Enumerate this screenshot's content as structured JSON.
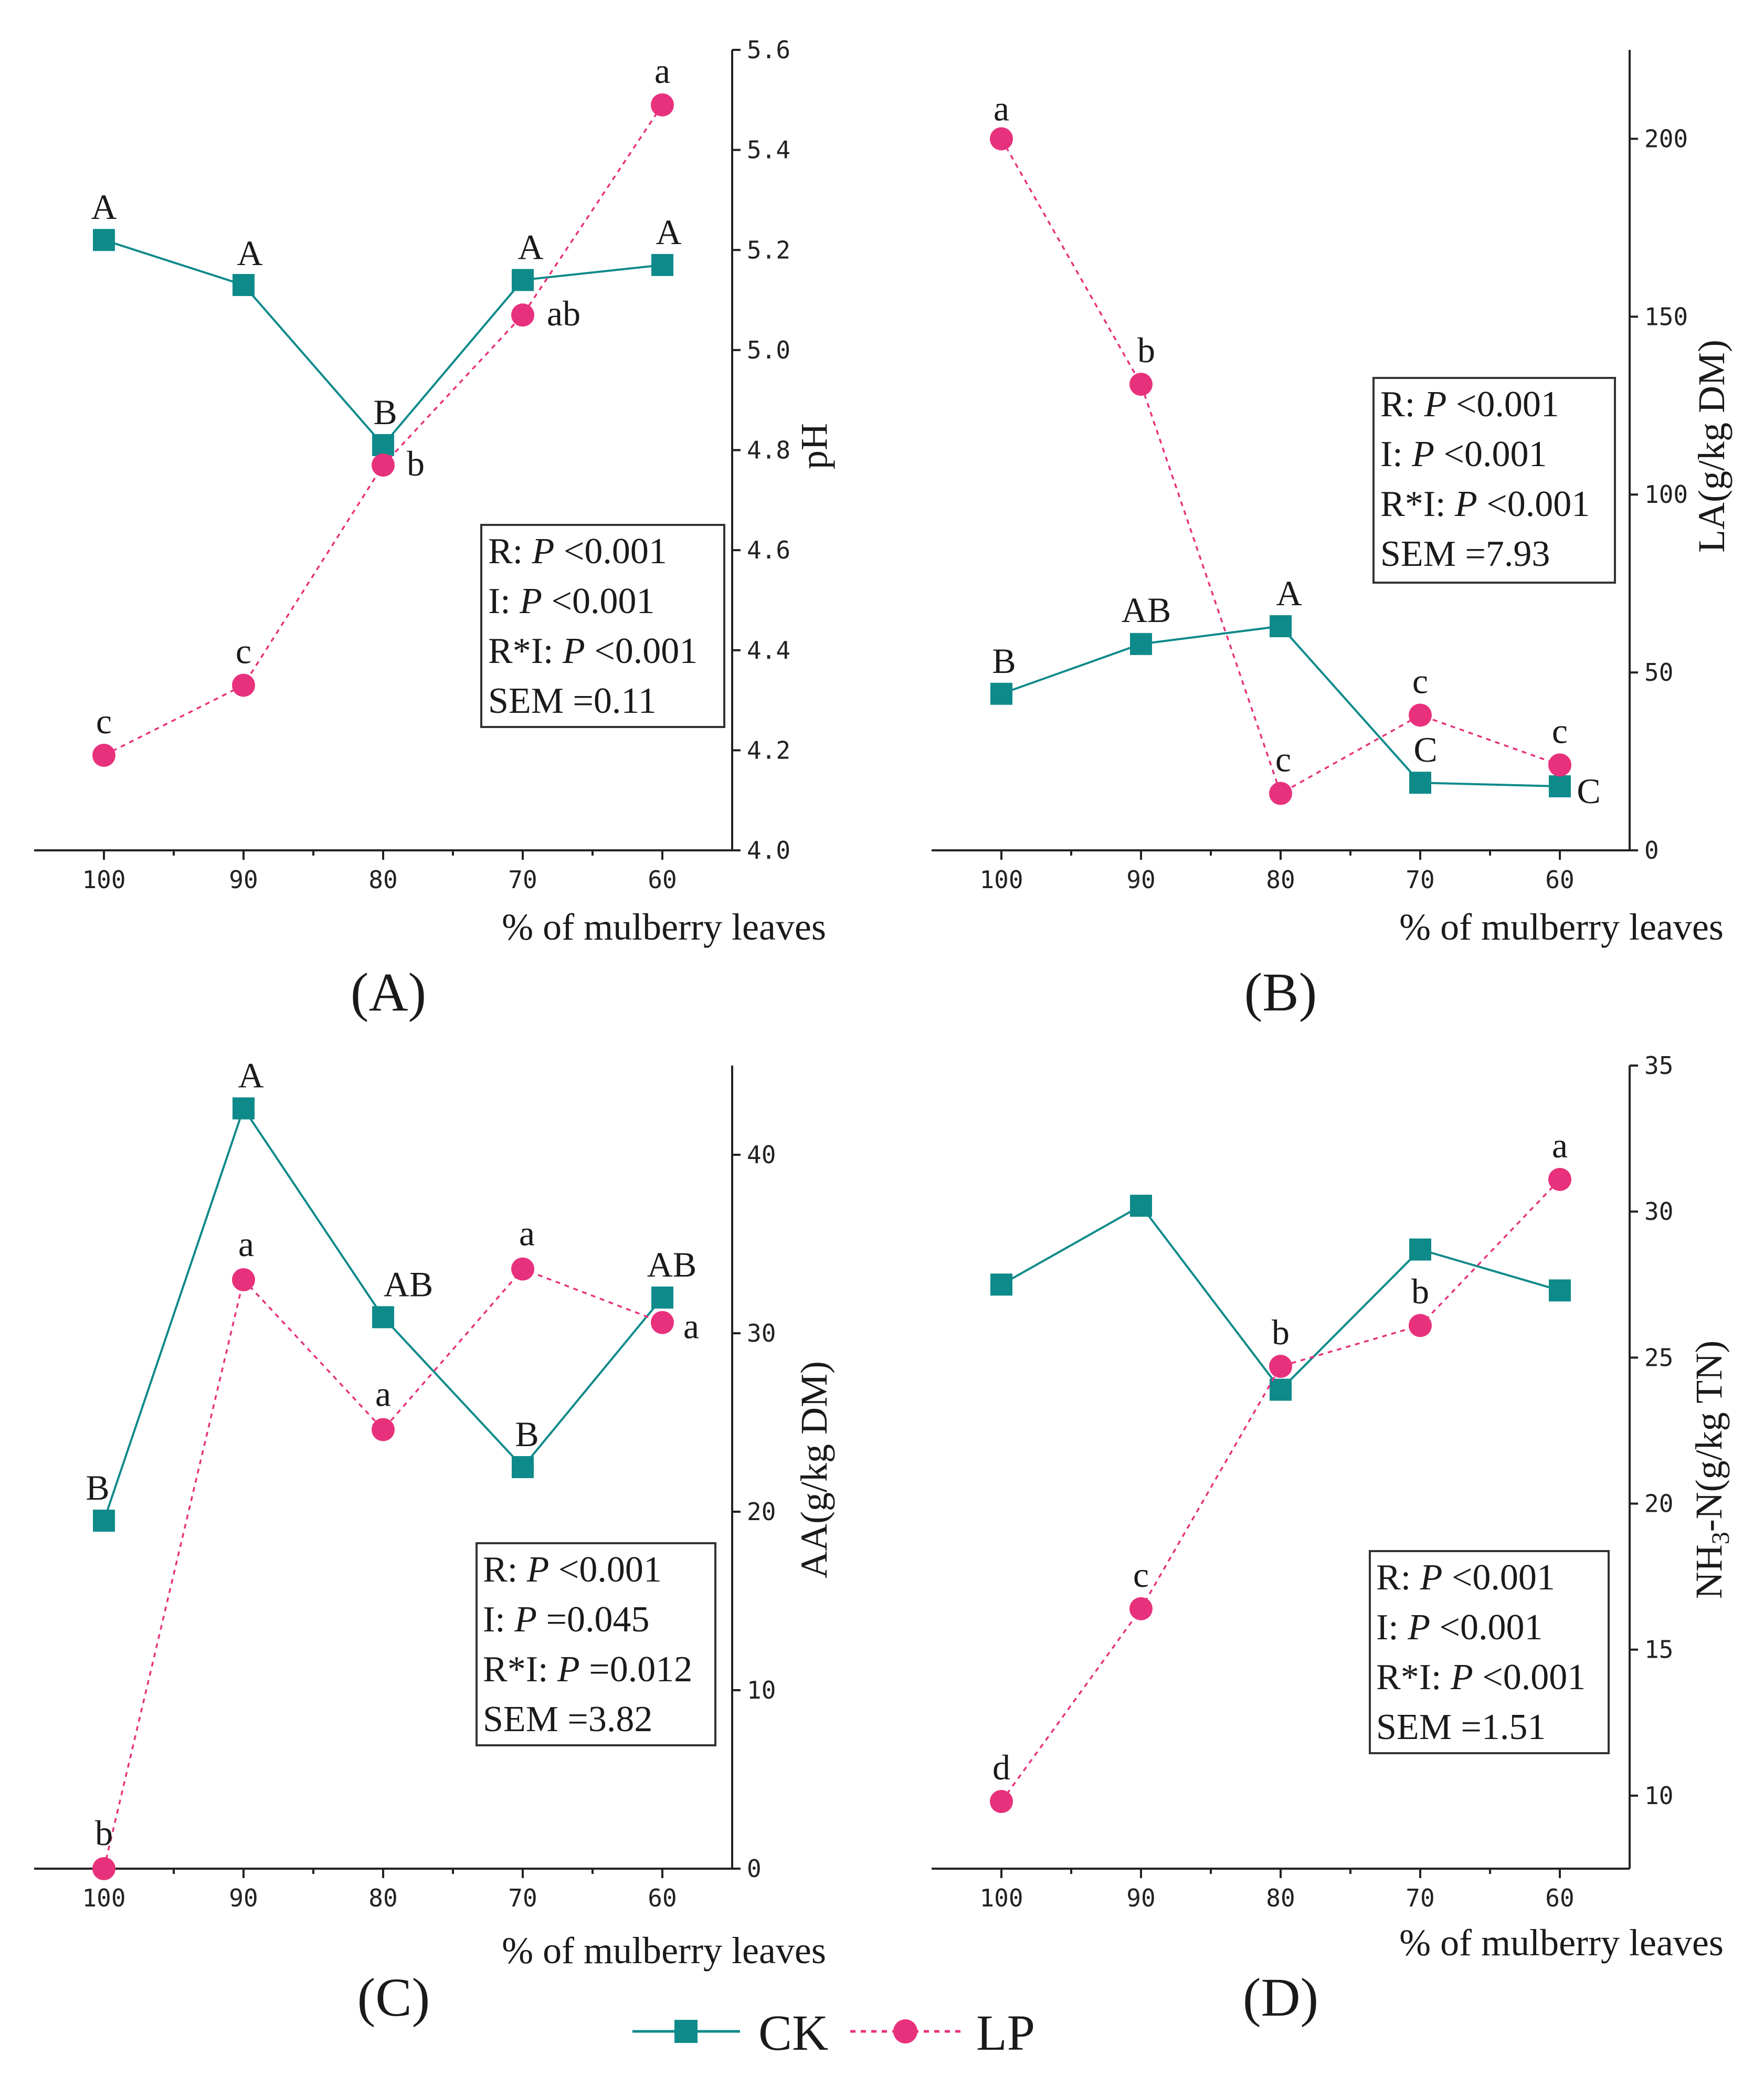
{
  "chart_data": [
    {
      "panel_label": "(A)",
      "type": "line",
      "categories": [
        "100",
        "90",
        "80",
        "70",
        "60"
      ],
      "xlabel": "% of mulberry leaves",
      "ylabel": "pH",
      "ylim": [
        4.0,
        5.6
      ],
      "yticks": [
        "4.0",
        "4.2",
        "4.4",
        "4.6",
        "4.8",
        "5.0",
        "5.2",
        "5.4",
        "5.6"
      ],
      "y_axis_side": "right",
      "series": [
        {
          "name": "CK",
          "values": [
            5.22,
            5.13,
            4.81,
            5.14,
            5.17
          ],
          "letters": [
            "A",
            "A",
            "B",
            "A",
            "A"
          ]
        },
        {
          "name": "LP",
          "values": [
            4.19,
            4.33,
            4.77,
            5.07,
            5.49
          ],
          "letters": [
            "c",
            "c",
            "b",
            "ab",
            "a"
          ]
        }
      ],
      "stats": [
        "R: P <0.001",
        "I: P <0.001",
        "R*I: P <0.001",
        "SEM =0.11"
      ]
    },
    {
      "panel_label": "(B)",
      "type": "line",
      "categories": [
        "100",
        "90",
        "80",
        "70",
        "60"
      ],
      "xlabel": "% of mulberry leaves",
      "ylabel": "LA(g/kg DM)",
      "ylim": [
        0,
        225
      ],
      "yticks": [
        "0",
        "50",
        "100",
        "150",
        "200"
      ],
      "y_axis_side": "right",
      "series": [
        {
          "name": "CK",
          "values": [
            44,
            58,
            63,
            19,
            18
          ],
          "letters": [
            "B",
            "AB",
            "A",
            "C",
            "C"
          ]
        },
        {
          "name": "LP",
          "values": [
            200,
            131,
            16,
            38,
            24
          ],
          "letters": [
            "a",
            "b",
            "c",
            "c",
            "c"
          ]
        }
      ],
      "stats": [
        "R: P <0.001",
        "I: P <0.001",
        "R*I: P <0.001",
        "SEM =7.93"
      ]
    },
    {
      "panel_label": "(C)",
      "type": "line",
      "categories": [
        "100",
        "90",
        "80",
        "70",
        "60"
      ],
      "xlabel": "% of mulberry leaves",
      "ylabel": "AA(g/kg DM)",
      "ylim": [
        0,
        45
      ],
      "yticks": [
        "0",
        "10",
        "20",
        "30",
        "40"
      ],
      "y_axis_side": "right",
      "series": [
        {
          "name": "CK",
          "values": [
            19.5,
            42.6,
            30.9,
            22.5,
            32.0
          ],
          "letters": [
            "B",
            "A",
            "AB",
            "B",
            "AB"
          ]
        },
        {
          "name": "LP",
          "values": [
            0,
            33.0,
            24.6,
            33.6,
            30.6
          ],
          "letters": [
            "b",
            "a",
            "a",
            "a",
            "a"
          ]
        }
      ],
      "stats": [
        "R: P <0.001",
        "I: P =0.045",
        "R*I: P =0.012",
        "SEM =3.82"
      ]
    },
    {
      "panel_label": "(D)",
      "type": "line",
      "categories": [
        "100",
        "90",
        "80",
        "70",
        "60"
      ],
      "xlabel": "% of mulberry leaves",
      "ylabel": "NH3-N(g/kg TN)",
      "ylim": [
        7.5,
        35
      ],
      "yticks": [
        "10",
        "15",
        "20",
        "25",
        "30",
        "35"
      ],
      "y_axis_side": "right",
      "series": [
        {
          "name": "CK",
          "values": [
            27.5,
            30.2,
            23.9,
            28.7,
            27.3
          ],
          "letters": [
            "",
            "",
            "",
            "",
            ""
          ]
        },
        {
          "name": "LP",
          "values": [
            9.8,
            16.4,
            24.7,
            26.1,
            31.1
          ],
          "letters": [
            "d",
            "c",
            "b",
            "b",
            "a"
          ]
        }
      ],
      "stats": [
        "R: P <0.001",
        "I: P <0.001",
        "R*I: P <0.001",
        "SEM =1.51"
      ]
    }
  ],
  "legend": [
    {
      "name": "CK",
      "color": "#0f8a8a",
      "marker": "square",
      "line": "solid"
    },
    {
      "name": "LP",
      "color": "#e8317c",
      "marker": "circle",
      "line": "dotted"
    }
  ],
  "colors": {
    "CK": "#0f8a8a",
    "LP": "#e8317c"
  }
}
